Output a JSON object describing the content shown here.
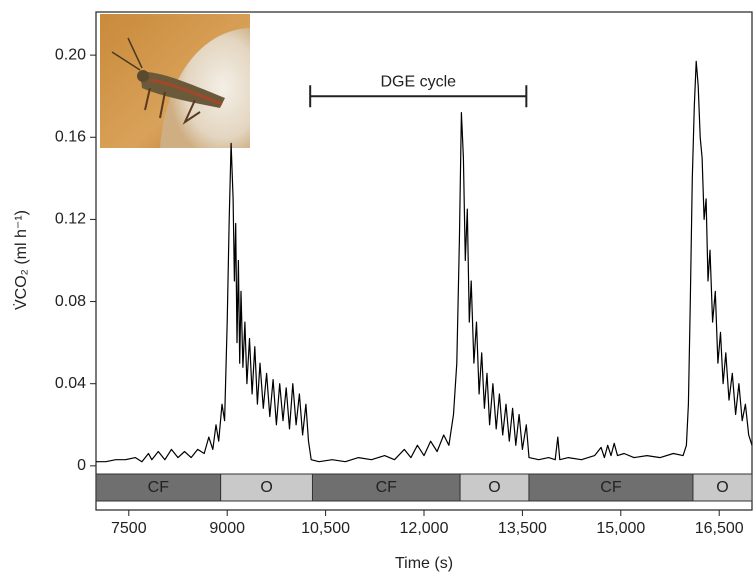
{
  "chart_data": {
    "type": "line",
    "xlabel": "Time (s)",
    "ylabel": "V̇CO₂ (ml h⁻¹)",
    "xlim": [
      7000,
      17000
    ],
    "ylim": [
      -0.0215,
      0.221
    ],
    "xticks": [
      7500,
      9000,
      {
        "value": 10500,
        "label": "10,500"
      },
      {
        "value": 12000,
        "label": "12,000"
      },
      {
        "value": 13500,
        "label": "13,500"
      },
      {
        "value": 15000,
        "label": "15,000"
      },
      {
        "value": 16500,
        "label": "16,500"
      }
    ],
    "yticks": [
      0,
      0.04,
      0.08,
      0.12,
      0.16,
      {
        "value": 0.2,
        "label": "0.20"
      }
    ],
    "grid": false,
    "color": "#000000",
    "annotation": {
      "text": "DGE cycle",
      "start": 10265,
      "end": 13560,
      "y": 0.18
    },
    "phases": [
      {
        "label": "CF",
        "start": 7000,
        "end": 8900
      },
      {
        "label": "O",
        "start": 8900,
        "end": 10300
      },
      {
        "label": "CF",
        "start": 10300,
        "end": 12550
      },
      {
        "label": "O",
        "start": 12550,
        "end": 13600
      },
      {
        "label": "CF",
        "start": 13600,
        "end": 16100
      },
      {
        "label": "O",
        "start": 16100,
        "end": 17000
      }
    ],
    "x": [
      7000,
      7150,
      7300,
      7450,
      7600,
      7700,
      7800,
      7850,
      7950,
      8050,
      8150,
      8250,
      8350,
      8450,
      8550,
      8650,
      8720,
      8780,
      8830,
      8870,
      8920,
      8960,
      9000,
      9030,
      9060,
      9090,
      9110,
      9130,
      9150,
      9170,
      9190,
      9210,
      9240,
      9270,
      9300,
      9340,
      9380,
      9420,
      9460,
      9500,
      9550,
      9600,
      9650,
      9700,
      9750,
      9800,
      9850,
      9900,
      9950,
      10000,
      10050,
      10100,
      10150,
      10200,
      10240,
      10280,
      10400,
      10600,
      10800,
      11000,
      11200,
      11400,
      11550,
      11700,
      11800,
      11900,
      12000,
      12100,
      12200,
      12300,
      12380,
      12450,
      12500,
      12540,
      12570,
      12600,
      12630,
      12660,
      12690,
      12720,
      12760,
      12800,
      12840,
      12880,
      12920,
      12960,
      13000,
      13050,
      13100,
      13150,
      13200,
      13250,
      13300,
      13350,
      13400,
      13450,
      13500,
      13560,
      13600,
      13750,
      13900,
      14000,
      14040,
      14070,
      14200,
      14400,
      14600,
      14700,
      14750,
      14800,
      14850,
      14900,
      14950,
      15050,
      15200,
      15400,
      15600,
      15800,
      15950,
      16000,
      16030,
      16060,
      16090,
      16120,
      16150,
      16180,
      16210,
      16240,
      16270,
      16300,
      16330,
      16360,
      16400,
      16440,
      16480,
      16520,
      16560,
      16600,
      16650,
      16700,
      16750,
      16800,
      16850,
      16900,
      16950,
      17000
    ],
    "values": [
      0.002,
      0.002,
      0.003,
      0.003,
      0.004,
      0.002,
      0.006,
      0.003,
      0.007,
      0.003,
      0.008,
      0.004,
      0.007,
      0.004,
      0.008,
      0.006,
      0.014,
      0.008,
      0.02,
      0.012,
      0.03,
      0.022,
      0.07,
      0.12,
      0.157,
      0.13,
      0.09,
      0.118,
      0.06,
      0.1,
      0.05,
      0.085,
      0.048,
      0.07,
      0.04,
      0.062,
      0.035,
      0.058,
      0.03,
      0.05,
      0.028,
      0.045,
      0.024,
      0.042,
      0.02,
      0.04,
      0.022,
      0.038,
      0.018,
      0.04,
      0.02,
      0.035,
      0.015,
      0.03,
      0.012,
      0.003,
      0.002,
      0.003,
      0.002,
      0.004,
      0.003,
      0.005,
      0.003,
      0.008,
      0.004,
      0.01,
      0.005,
      0.012,
      0.007,
      0.015,
      0.01,
      0.025,
      0.05,
      0.11,
      0.172,
      0.15,
      0.1,
      0.125,
      0.07,
      0.09,
      0.05,
      0.07,
      0.035,
      0.055,
      0.028,
      0.045,
      0.02,
      0.04,
      0.018,
      0.035,
      0.015,
      0.03,
      0.012,
      0.028,
      0.01,
      0.025,
      0.008,
      0.02,
      0.004,
      0.003,
      0.004,
      0.003,
      0.014,
      0.003,
      0.004,
      0.003,
      0.005,
      0.009,
      0.004,
      0.01,
      0.005,
      0.011,
      0.005,
      0.006,
      0.004,
      0.005,
      0.004,
      0.006,
      0.005,
      0.01,
      0.03,
      0.08,
      0.14,
      0.175,
      0.197,
      0.185,
      0.16,
      0.15,
      0.12,
      0.13,
      0.09,
      0.105,
      0.07,
      0.085,
      0.05,
      0.065,
      0.04,
      0.055,
      0.032,
      0.045,
      0.025,
      0.04,
      0.022,
      0.03,
      0.015,
      0.01
    ]
  }
}
